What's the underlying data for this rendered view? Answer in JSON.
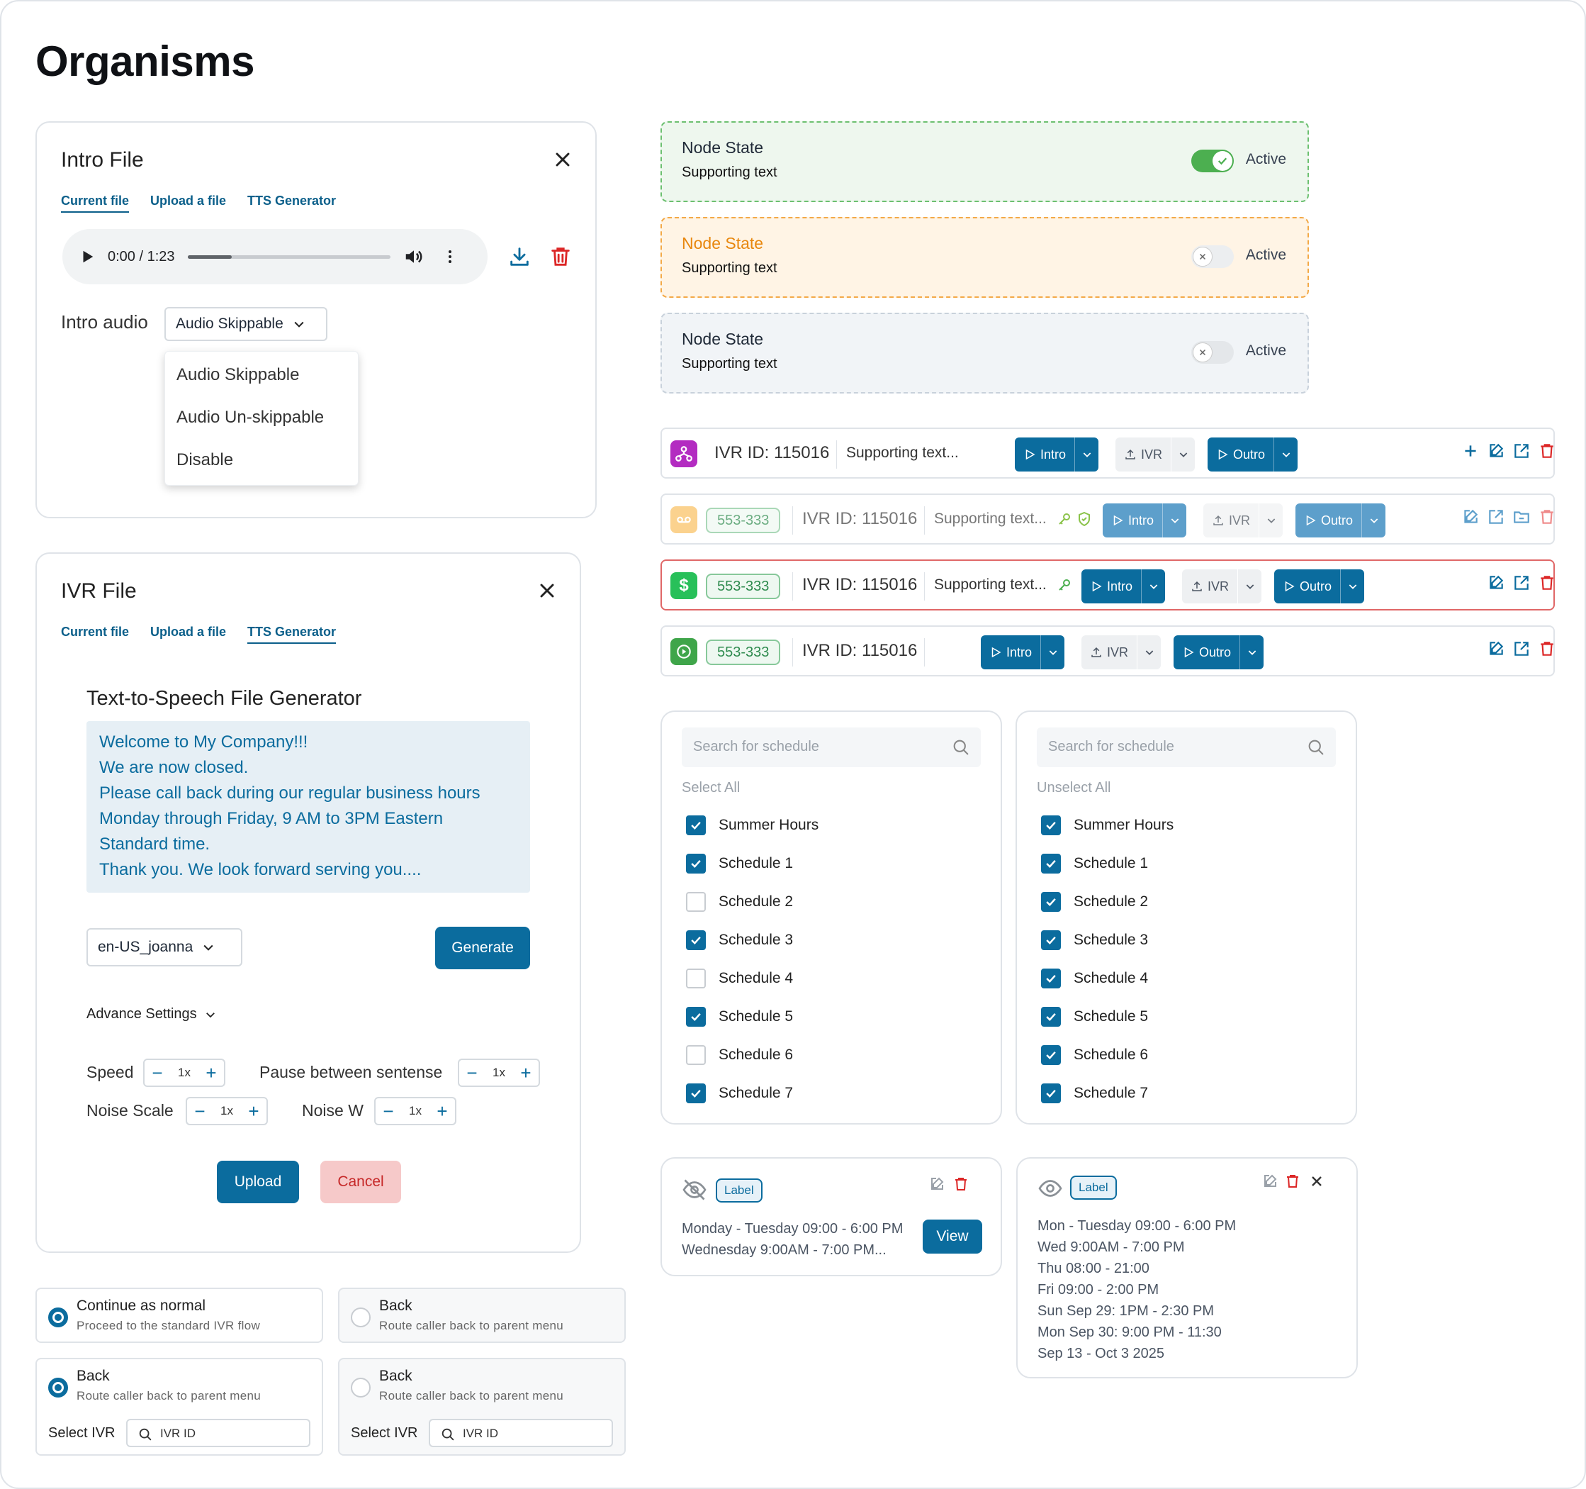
{
  "page_title": "Organisms",
  "intro_file": {
    "title": "Intro File",
    "tabs": [
      "Current file",
      "Upload a file",
      "TTS Generator"
    ],
    "active_tab": 0,
    "player_time": "0:00 / 1:23",
    "player_progress": 0.22,
    "intro_audio_label": "Intro audio",
    "intro_audio_value": "Audio Skippable",
    "options": [
      "Audio Skippable",
      "Audio Un-skippable",
      "Disable"
    ]
  },
  "ivr_file": {
    "title": "IVR File",
    "tabs": [
      "Current file",
      "Upload a file",
      "TTS Generator"
    ],
    "active_tab": 2,
    "tts_title": "Text-to-Speech File Generator",
    "tts_lines": [
      "Welcome to My Company!!!",
      "We are now closed.",
      "Please call back during our regular business hours",
      "Monday through Friday, 9 AM to 3PM Eastern",
      "Standard time.",
      "Thank you. We look forward serving you...."
    ],
    "voice": "en-US_joanna",
    "generate_label": "Generate",
    "advance_label": "Advance Settings",
    "speed_label": "Speed",
    "pause_label": "Pause between sentense",
    "noise_scale_label": "Noise Scale",
    "noise_w_label": "Noise W",
    "step_value": "1x",
    "upload_label": "Upload",
    "cancel_label": "Cancel"
  },
  "node_states": [
    {
      "title": "Node State",
      "sub": "Supporting text",
      "toggle": "Active",
      "on": true,
      "variant": "green"
    },
    {
      "title": "Node State",
      "sub": "Supporting text",
      "toggle": "Active",
      "on": false,
      "variant": "orange"
    },
    {
      "title": "Node State",
      "sub": "Supporting text",
      "toggle": "Active",
      "on": false,
      "variant": "grey"
    }
  ],
  "ivr_rows": {
    "badge": "553-333",
    "ivr_id": "IVR ID: 115016",
    "supporting": "Supporting text...",
    "supporting_short": "Supporting text...",
    "intro": "Intro",
    "ivr": "IVR",
    "outro": "Outro"
  },
  "schedule_lists": [
    {
      "placeholder": "Search for schedule",
      "select_label": "Select All",
      "items": [
        {
          "label": "Summer Hours",
          "checked": true
        },
        {
          "label": "Schedule 1",
          "checked": true
        },
        {
          "label": "Schedule 2",
          "checked": false
        },
        {
          "label": "Schedule 3",
          "checked": true
        },
        {
          "label": "Schedule 4",
          "checked": false
        },
        {
          "label": "Schedule 5",
          "checked": true
        },
        {
          "label": "Schedule 6",
          "checked": false
        },
        {
          "label": "Schedule 7",
          "checked": true
        }
      ]
    },
    {
      "placeholder": "Search for schedule",
      "select_label": "Unselect All",
      "items": [
        {
          "label": "Summer Hours",
          "checked": true
        },
        {
          "label": "Schedule 1",
          "checked": true
        },
        {
          "label": "Schedule 2",
          "checked": true
        },
        {
          "label": "Schedule 3",
          "checked": true
        },
        {
          "label": "Schedule 4",
          "checked": true
        },
        {
          "label": "Schedule 5",
          "checked": true
        },
        {
          "label": "Schedule 6",
          "checked": true
        },
        {
          "label": "Schedule 7",
          "checked": true
        }
      ]
    }
  ],
  "hours_cards": [
    {
      "label": "Label",
      "lines": [
        "Monday - Tuesday 09:00 - 6:00 PM",
        "Wednesday 9:00AM - 7:00 PM..."
      ],
      "view_label": "View"
    },
    {
      "label": "Label",
      "lines": [
        "Mon - Tuesday 09:00 - 6:00 PM",
        "Wed 9:00AM - 7:00 PM",
        "Thu 08:00 - 21:00",
        "Fri 09:00 - 2:00 PM",
        "Sun Sep 29: 1PM - 2:30 PM",
        "Mon Sep 30: 9:00 PM - 11:30",
        "Sep 13 - Oct 3 2025"
      ]
    }
  ],
  "flow_options": [
    {
      "title": "Continue as normal",
      "sub": "Proceed to the standard IVR flow",
      "selected": true
    },
    {
      "title": "Back",
      "sub": "Route caller back to parent menu",
      "selected": false
    },
    {
      "title": "Back",
      "sub": "Route caller back to parent menu",
      "selected": true,
      "select_ivr": "Select IVR",
      "ivr_placeholder": "IVR ID"
    },
    {
      "title": "Back",
      "sub": "Route caller back to parent menu",
      "selected": false,
      "select_ivr": "Select IVR",
      "ivr_placeholder": "IVR ID"
    }
  ],
  "colors": {
    "primary": "#0b6c9e",
    "danger": "#dc2626",
    "success": "#4caf50",
    "warning": "#f59e0b"
  }
}
